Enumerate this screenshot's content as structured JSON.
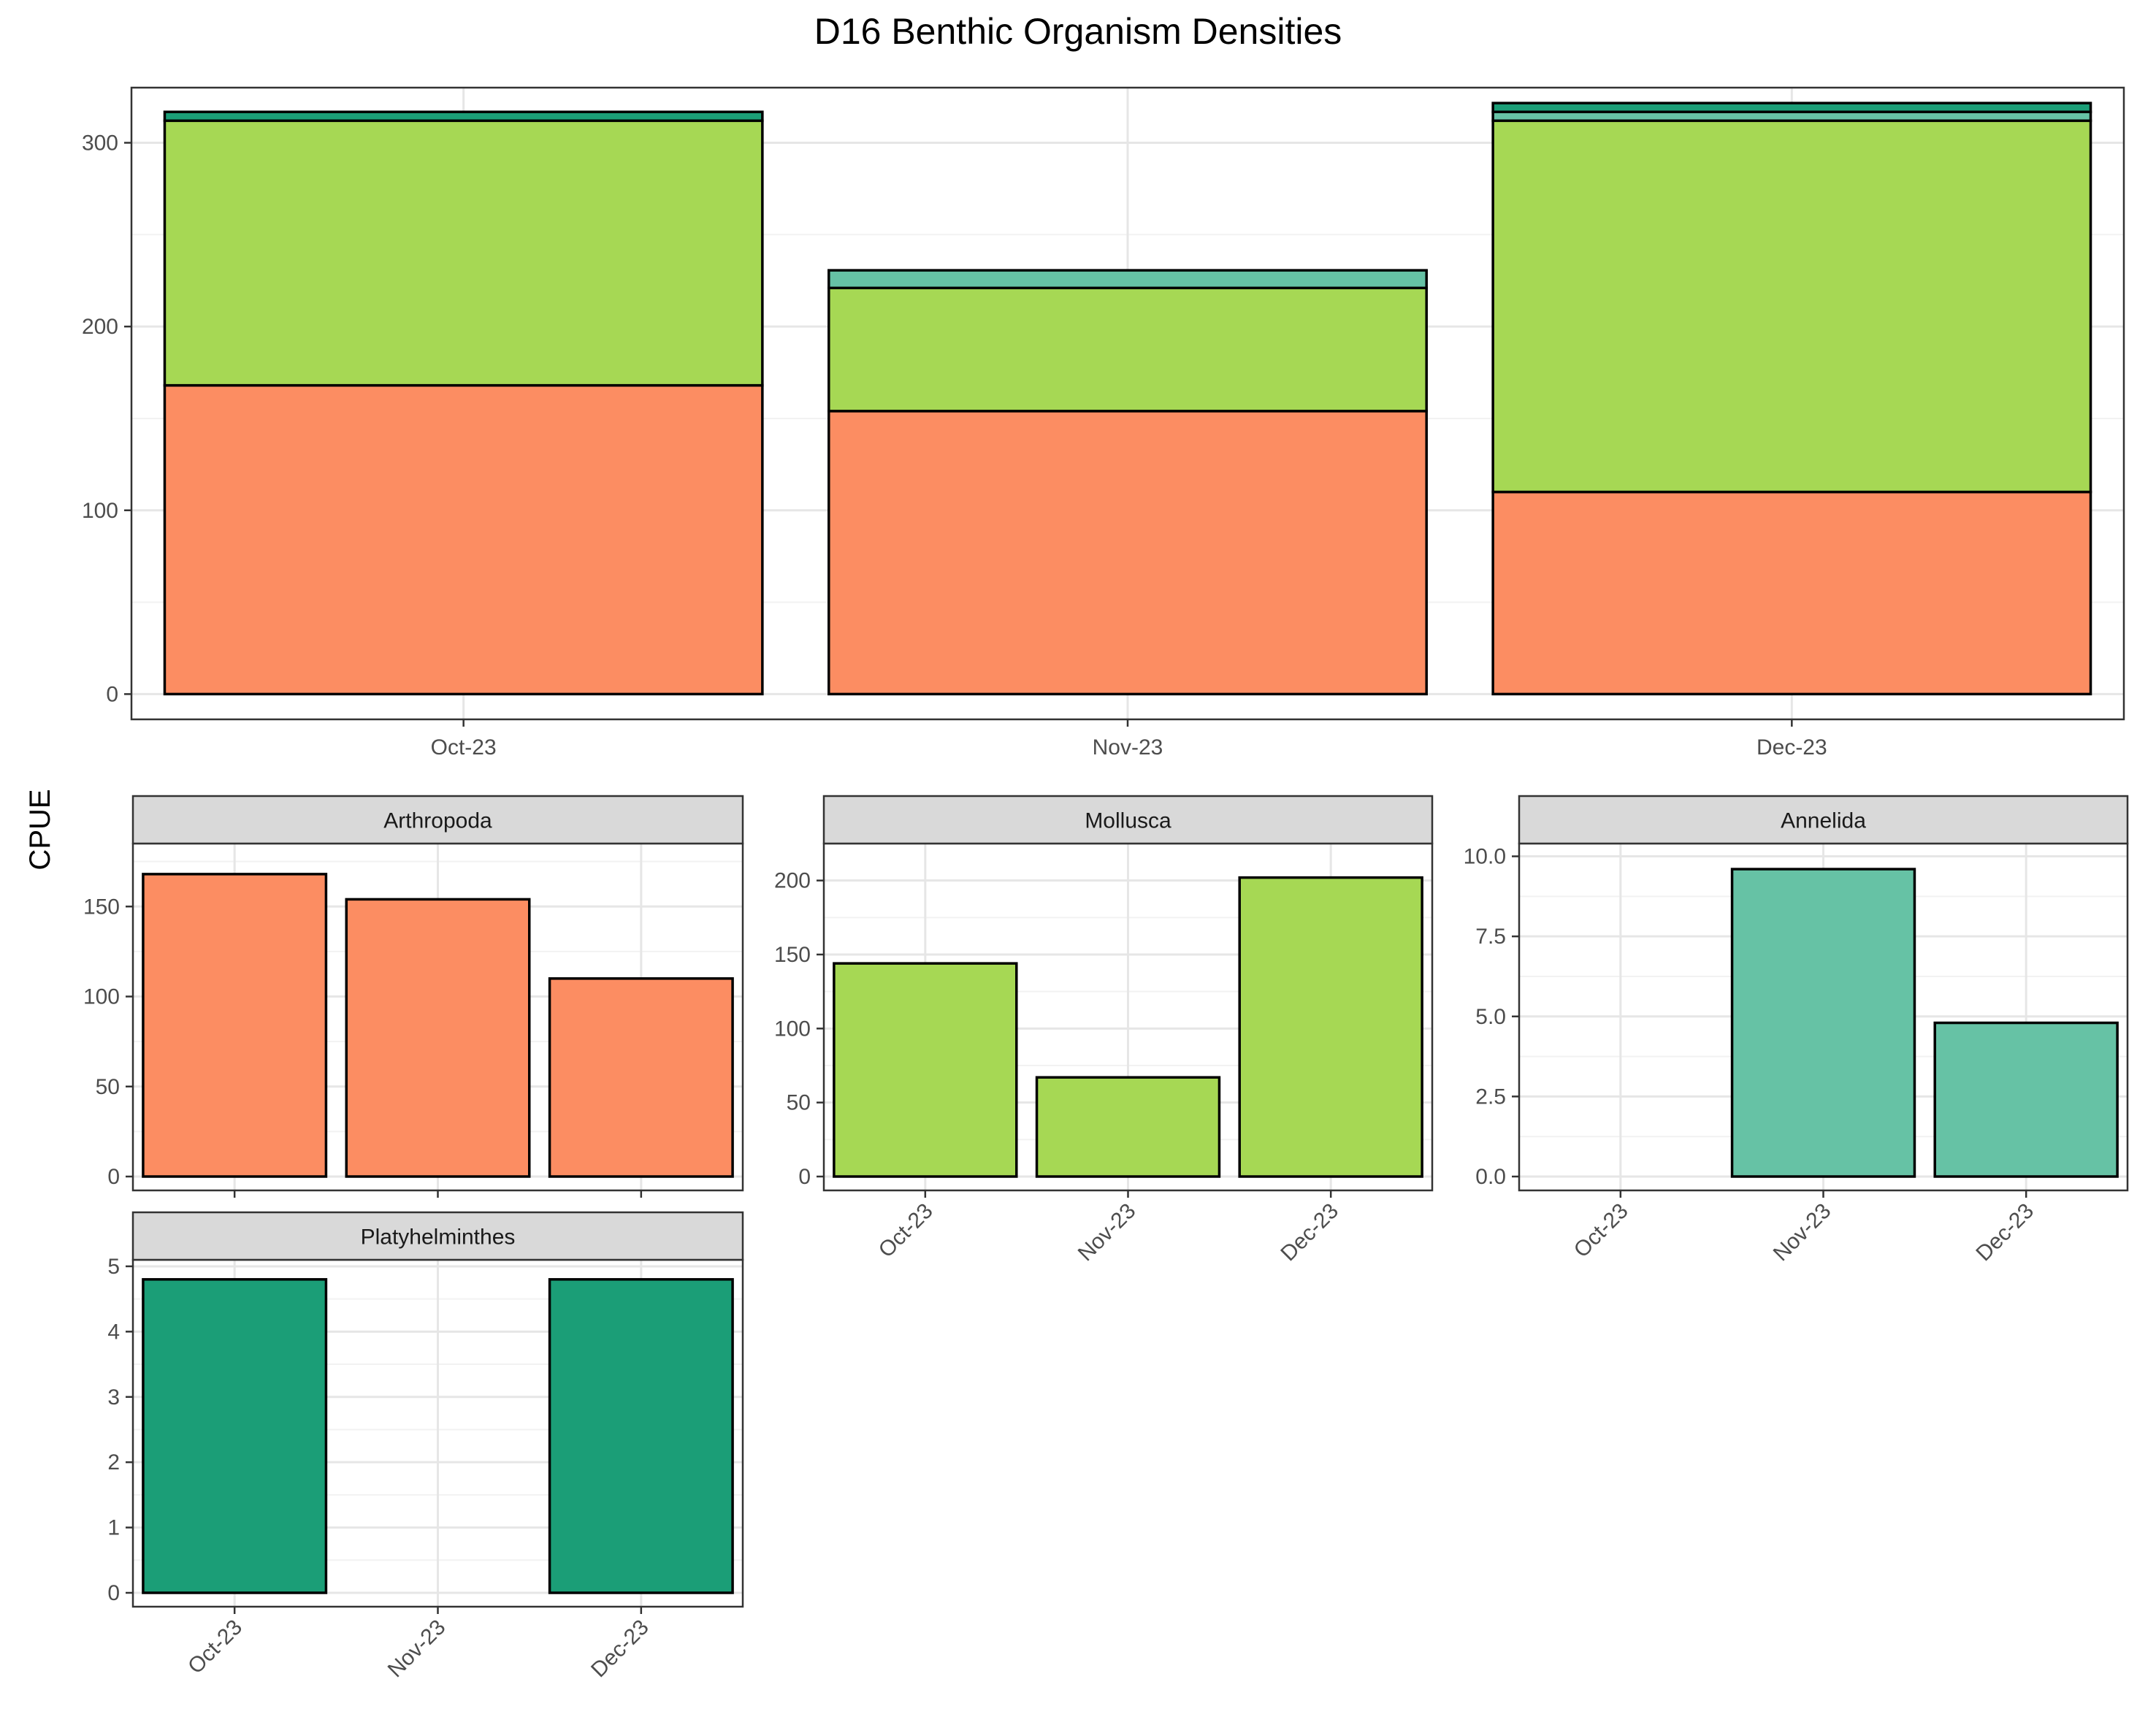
{
  "chart_data": [
    {
      "type": "bar",
      "stacked": true,
      "title": "D16 Benthic Organism Densities",
      "categories": [
        "Oct-23",
        "Nov-23",
        "Dec-23"
      ],
      "ylim": [
        0,
        330
      ],
      "yticks": [
        0,
        100,
        200,
        300
      ],
      "grid": true,
      "legend": "none",
      "series": [
        {
          "values": [
            168,
            154,
            110
          ],
          "color": "#FC8D62"
        },
        {
          "values": [
            144,
            67,
            202
          ],
          "color": "#A6D854"
        },
        {
          "values": [
            0,
            9.6,
            4.8
          ],
          "color": "#66C2A5"
        },
        {
          "values": [
            4.8,
            0,
            4.8
          ],
          "color": "#1B9E77"
        }
      ]
    },
    {
      "type": "bar",
      "title": "Arthropoda",
      "categories": [
        "Oct-23",
        "Nov-23",
        "Dec-23"
      ],
      "values": [
        168,
        154,
        110
      ],
      "ylim": [
        0,
        185
      ],
      "yticks": [
        0,
        50,
        100,
        150
      ],
      "ylabel": "CPUE",
      "color": "#FC8D62",
      "show_xticks": false
    },
    {
      "type": "bar",
      "title": "Mollusca",
      "categories": [
        "Oct-23",
        "Nov-23",
        "Dec-23"
      ],
      "values": [
        144,
        67,
        202
      ],
      "ylim": [
        0,
        225
      ],
      "yticks": [
        0,
        50,
        100,
        150,
        200
      ],
      "color": "#A6D854",
      "show_xticks": true
    },
    {
      "type": "bar",
      "title": "Annelida",
      "categories": [
        "Oct-23",
        "Nov-23",
        "Dec-23"
      ],
      "values": [
        0,
        9.6,
        4.8
      ],
      "ylim": [
        0,
        10.4
      ],
      "yticks": [
        0,
        2.5,
        5,
        7.5,
        10
      ],
      "ytick_labels": [
        "0.0",
        "2.5",
        "5.0",
        "7.5",
        "10.0"
      ],
      "color": "#66C2A5",
      "show_xticks": true
    },
    {
      "type": "bar",
      "title": "Platyhelminthes",
      "categories": [
        "Oct-23",
        "Nov-23",
        "Dec-23"
      ],
      "values": [
        4.8,
        0,
        4.8
      ],
      "ylim": [
        0,
        5.1
      ],
      "yticks": [
        0,
        1,
        2,
        3,
        4,
        5
      ],
      "color": "#1B9E77",
      "show_xticks": true
    }
  ]
}
